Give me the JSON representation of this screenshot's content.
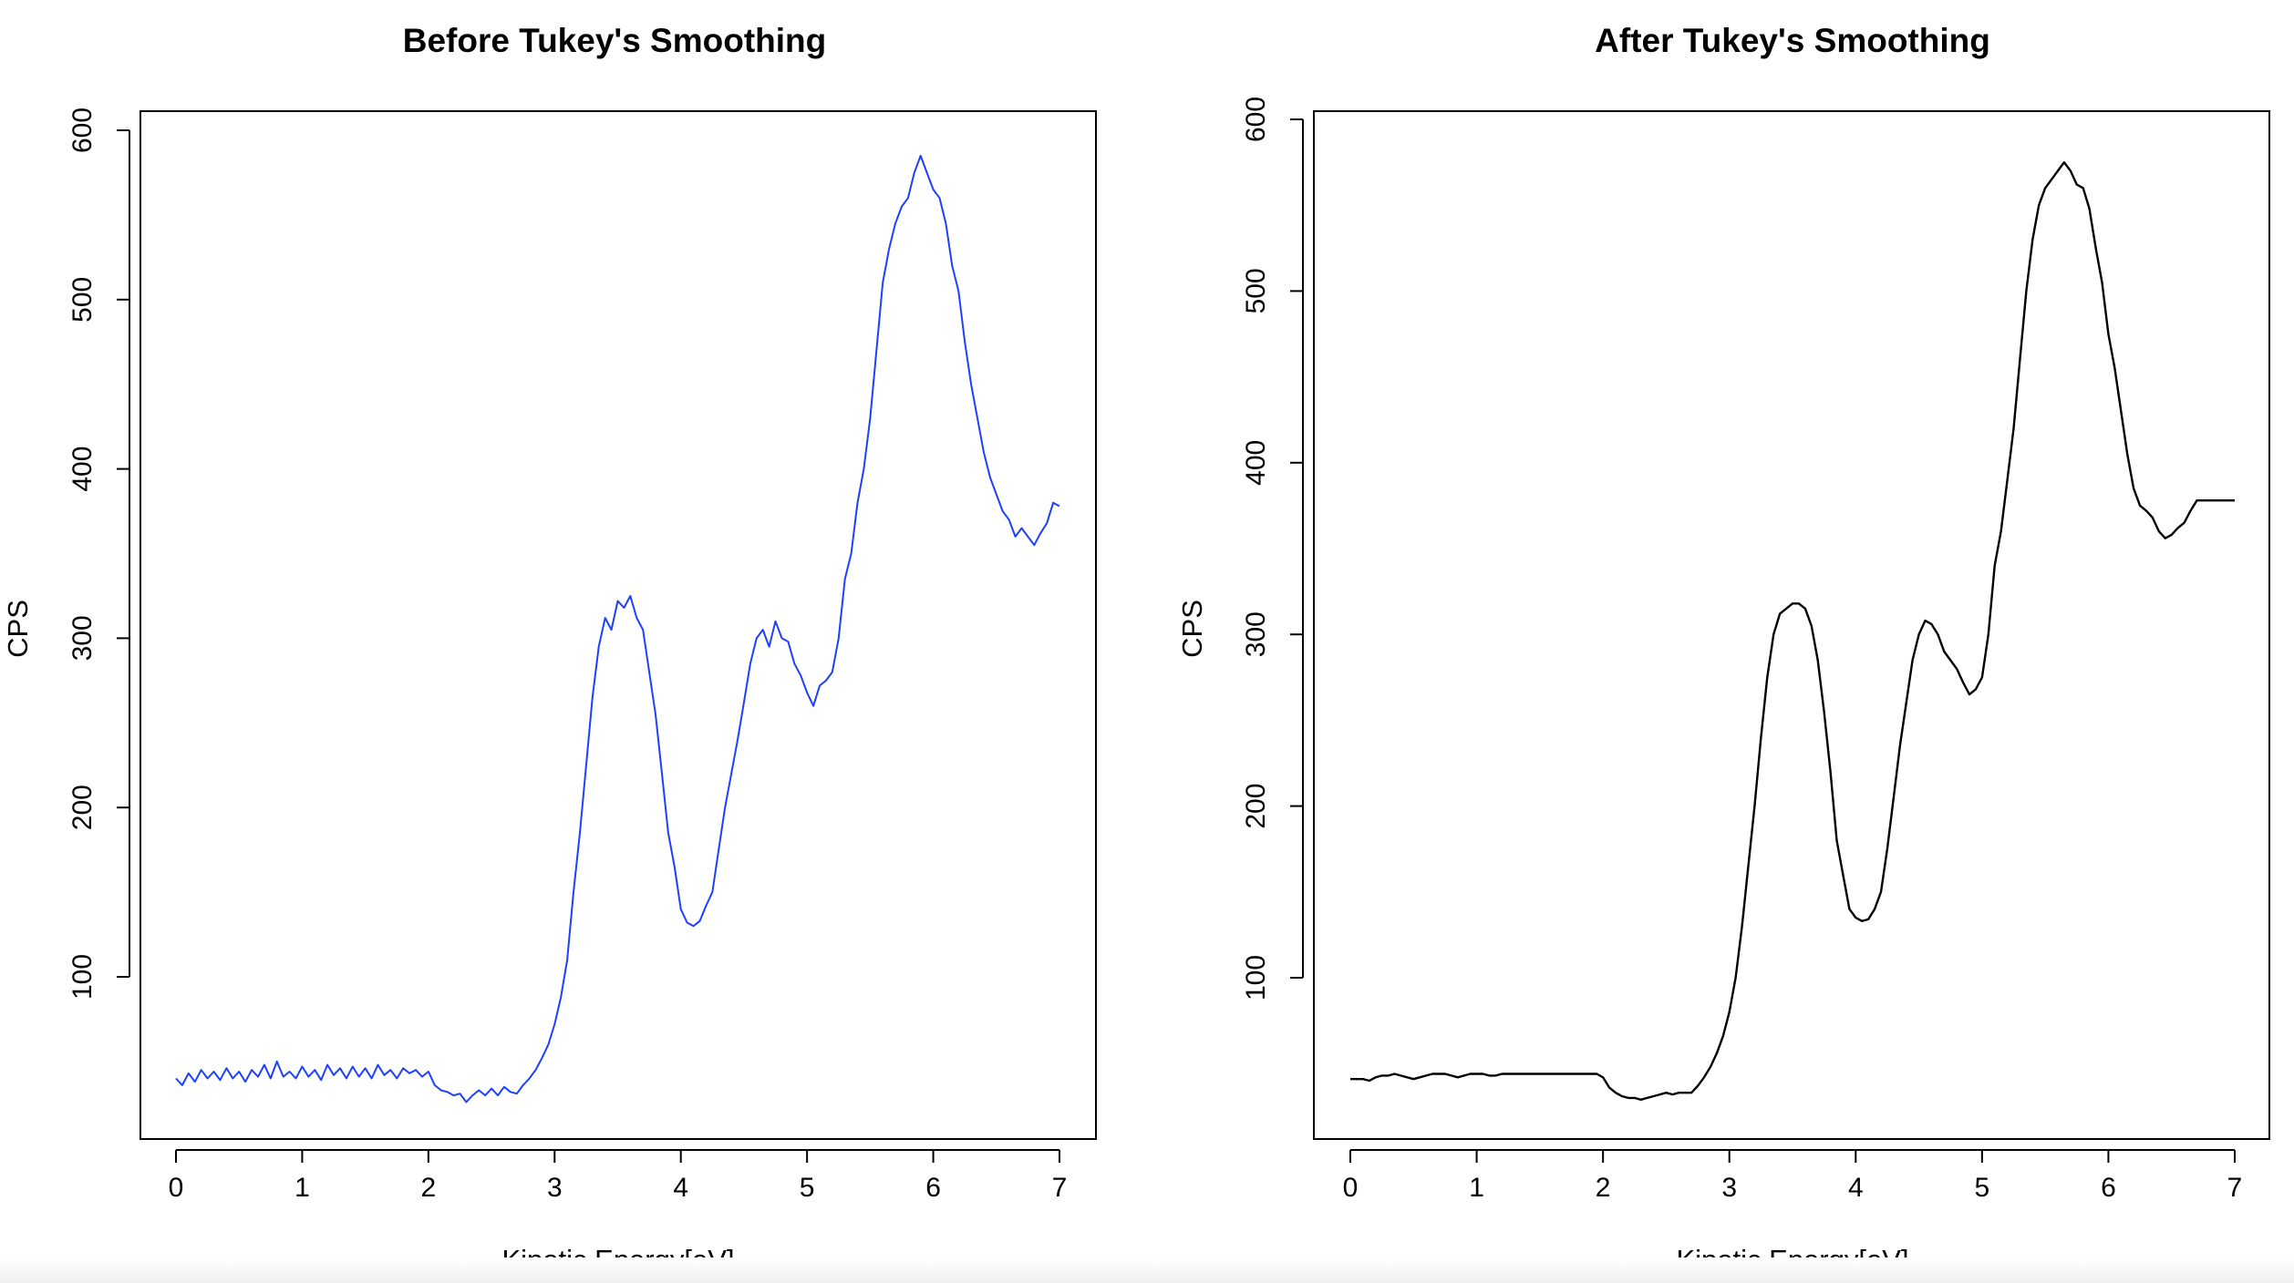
{
  "chart_data": [
    {
      "type": "line",
      "title": "Before Tukey's Smoothing",
      "xlabel": "Kinetic Energy[eV]",
      "ylabel": "CPS",
      "xlim": [
        0,
        7
      ],
      "ylim": [
        22,
        605
      ],
      "xticks": [
        "0",
        "1",
        "2",
        "3",
        "4",
        "5",
        "6",
        "7"
      ],
      "yticks": [
        "100",
        "200",
        "300",
        "400",
        "500",
        "600"
      ],
      "grid": false,
      "series": [
        {
          "color": "#1f3fff",
          "x": [
            0,
            0.05,
            0.1,
            0.15,
            0.2,
            0.25,
            0.3,
            0.35,
            0.4,
            0.45,
            0.5,
            0.55,
            0.6,
            0.65,
            0.7,
            0.75,
            0.8,
            0.85,
            0.9,
            0.95,
            1.0,
            1.05,
            1.1,
            1.15,
            1.2,
            1.25,
            1.3,
            1.35,
            1.4,
            1.45,
            1.5,
            1.55,
            1.6,
            1.65,
            1.7,
            1.75,
            1.8,
            1.85,
            1.9,
            1.95,
            2.0,
            2.05,
            2.1,
            2.15,
            2.2,
            2.25,
            2.3,
            2.35,
            2.4,
            2.45,
            2.5,
            2.55,
            2.6,
            2.65,
            2.7,
            2.75,
            2.8,
            2.85,
            2.9,
            2.95,
            3.0,
            3.05,
            3.1,
            3.15,
            3.2,
            3.25,
            3.3,
            3.35,
            3.4,
            3.45,
            3.5,
            3.55,
            3.6,
            3.65,
            3.7,
            3.75,
            3.8,
            3.85,
            3.9,
            3.95,
            4.0,
            4.05,
            4.1,
            4.15,
            4.2,
            4.25,
            4.3,
            4.35,
            4.4,
            4.45,
            4.5,
            4.55,
            4.6,
            4.65,
            4.7,
            4.75,
            4.8,
            4.85,
            4.9,
            4.95,
            5.0,
            5.05,
            5.1,
            5.15,
            5.2,
            5.25,
            5.3,
            5.35,
            5.4,
            5.45,
            5.5,
            5.55,
            5.6,
            5.65,
            5.7,
            5.75,
            5.8,
            5.85,
            5.9,
            5.95,
            6.0,
            6.05,
            6.1,
            6.15,
            6.2,
            6.25,
            6.3,
            6.35,
            6.4,
            6.45,
            6.5,
            6.55,
            6.6,
            6.65,
            6.7,
            6.75,
            6.8,
            6.85,
            6.9,
            6.95,
            7.0
          ],
          "y": [
            40,
            36,
            43,
            38,
            45,
            40,
            44,
            39,
            46,
            40,
            44,
            38,
            45,
            41,
            48,
            40,
            50,
            41,
            44,
            40,
            47,
            41,
            45,
            39,
            48,
            42,
            46,
            40,
            47,
            41,
            46,
            40,
            48,
            42,
            45,
            40,
            46,
            43,
            45,
            41,
            44,
            36,
            33,
            32,
            30,
            31,
            26,
            30,
            33,
            30,
            34,
            30,
            35,
            32,
            31,
            36,
            40,
            45,
            52,
            60,
            72,
            88,
            110,
            150,
            185,
            225,
            265,
            295,
            312,
            305,
            322,
            318,
            325,
            312,
            305,
            280,
            255,
            220,
            185,
            165,
            140,
            132,
            130,
            133,
            142,
            150,
            175,
            200,
            220,
            240,
            262,
            285,
            300,
            305,
            295,
            310,
            300,
            298,
            285,
            278,
            268,
            260,
            272,
            275,
            280,
            300,
            335,
            350,
            380,
            400,
            430,
            470,
            510,
            530,
            545,
            555,
            560,
            575,
            585,
            575,
            565,
            560,
            545,
            520,
            505,
            475,
            450,
            430,
            410,
            395,
            385,
            375,
            370,
            360,
            365,
            360,
            355,
            362,
            368,
            380,
            378
          ]
        }
      ]
    },
    {
      "type": "line",
      "title": "After Tukey's Smoothing",
      "xlabel": "Kinetic Energy[eV]",
      "ylabel": "CPS",
      "xlim": [
        0,
        7
      ],
      "ylim": [
        22,
        605
      ],
      "xticks": [
        "0",
        "1",
        "2",
        "3",
        "4",
        "5",
        "6",
        "7"
      ],
      "yticks": [
        "100",
        "200",
        "300",
        "400",
        "500",
        "600"
      ],
      "grid": false,
      "series": [
        {
          "color": "#000000",
          "x": [
            0,
            0.05,
            0.1,
            0.15,
            0.2,
            0.25,
            0.3,
            0.35,
            0.4,
            0.45,
            0.5,
            0.55,
            0.6,
            0.65,
            0.7,
            0.75,
            0.8,
            0.85,
            0.9,
            0.95,
            1.0,
            1.05,
            1.1,
            1.15,
            1.2,
            1.25,
            1.3,
            1.35,
            1.4,
            1.45,
            1.5,
            1.55,
            1.6,
            1.65,
            1.7,
            1.75,
            1.8,
            1.85,
            1.9,
            1.95,
            2.0,
            2.05,
            2.1,
            2.15,
            2.2,
            2.25,
            2.3,
            2.35,
            2.4,
            2.45,
            2.5,
            2.55,
            2.6,
            2.65,
            2.7,
            2.75,
            2.8,
            2.85,
            2.9,
            2.95,
            3.0,
            3.05,
            3.1,
            3.15,
            3.2,
            3.25,
            3.3,
            3.35,
            3.4,
            3.45,
            3.5,
            3.55,
            3.6,
            3.65,
            3.7,
            3.75,
            3.8,
            3.85,
            3.9,
            3.95,
            4.0,
            4.05,
            4.1,
            4.15,
            4.2,
            4.25,
            4.3,
            4.35,
            4.4,
            4.45,
            4.5,
            4.55,
            4.6,
            4.65,
            4.7,
            4.75,
            4.8,
            4.85,
            4.9,
            4.95,
            5.0,
            5.05,
            5.1,
            5.15,
            5.2,
            5.25,
            5.3,
            5.35,
            5.4,
            5.45,
            5.5,
            5.55,
            5.6,
            5.65,
            5.7,
            5.75,
            5.8,
            5.85,
            5.9,
            5.95,
            6.0,
            6.05,
            6.1,
            6.15,
            6.2,
            6.25,
            6.3,
            6.35,
            6.4,
            6.45,
            6.5,
            6.55,
            6.6,
            6.65,
            6.7,
            6.75,
            6.8,
            6.85,
            6.9,
            6.95,
            7.0
          ],
          "y": [
            41,
            41,
            41,
            40,
            42,
            43,
            43,
            44,
            43,
            42,
            41,
            42,
            43,
            44,
            44,
            44,
            43,
            42,
            43,
            44,
            44,
            44,
            43,
            43,
            44,
            44,
            44,
            44,
            44,
            44,
            44,
            44,
            44,
            44,
            44,
            44,
            44,
            44,
            44,
            44,
            42,
            36,
            33,
            31,
            30,
            30,
            29,
            30,
            31,
            32,
            33,
            32,
            33,
            33,
            33,
            37,
            42,
            48,
            56,
            66,
            80,
            100,
            130,
            165,
            200,
            240,
            275,
            300,
            312,
            315,
            318,
            318,
            315,
            305,
            285,
            255,
            220,
            180,
            160,
            140,
            135,
            133,
            134,
            140,
            150,
            175,
            205,
            235,
            260,
            285,
            300,
            308,
            306,
            300,
            290,
            285,
            280,
            272,
            265,
            268,
            275,
            300,
            340,
            360,
            390,
            420,
            460,
            500,
            530,
            550,
            560,
            565,
            570,
            575,
            570,
            562,
            560,
            548,
            525,
            505,
            475,
            455,
            430,
            405,
            385,
            375,
            372,
            368,
            360,
            356,
            358,
            362,
            365,
            372,
            378,
            378,
            378,
            378,
            378,
            378,
            378
          ]
        }
      ]
    }
  ]
}
